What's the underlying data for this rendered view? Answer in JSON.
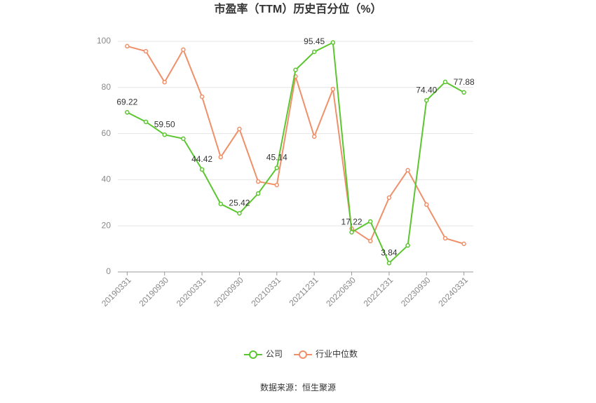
{
  "chart_data": {
    "type": "line",
    "title": "市盈率（TTM）历史百分位（%）",
    "categories": [
      "20190331",
      null,
      "20190930",
      null,
      "20200331",
      null,
      "20200930",
      null,
      "20210331",
      null,
      "20211231",
      null,
      "20220630",
      null,
      "20221231",
      null,
      "20230930",
      null,
      "20240331"
    ],
    "series": [
      {
        "name": "公司",
        "color": "#5cc630",
        "values": [
          69.22,
          65.1,
          59.5,
          57.8,
          44.42,
          29.5,
          25.42,
          34.0,
          45.14,
          87.6,
          95.45,
          99.5,
          17.22,
          21.9,
          3.84,
          11.5,
          74.4,
          82.4,
          77.88
        ],
        "value_labels": [
          "69.22",
          null,
          "59.50",
          null,
          "44.42",
          null,
          "25.42",
          null,
          "45.14",
          null,
          "95.45",
          null,
          "17.22",
          null,
          "3.84",
          null,
          "74.40",
          null,
          "77.88"
        ]
      },
      {
        "name": "行业中位数",
        "color": "#f0906a",
        "values": [
          97.9,
          95.7,
          82.3,
          96.4,
          76.0,
          49.8,
          62.0,
          39.2,
          37.7,
          84.8,
          58.7,
          79.3,
          18.8,
          13.4,
          32.2,
          44.1,
          29.2,
          14.6,
          12.2
        ]
      }
    ],
    "ylim": [
      0,
      100
    ],
    "yticks": [
      0,
      20,
      40,
      60,
      80,
      100
    ],
    "grid": true,
    "legend": "bottom",
    "source": "数据来源：恒生聚源"
  }
}
